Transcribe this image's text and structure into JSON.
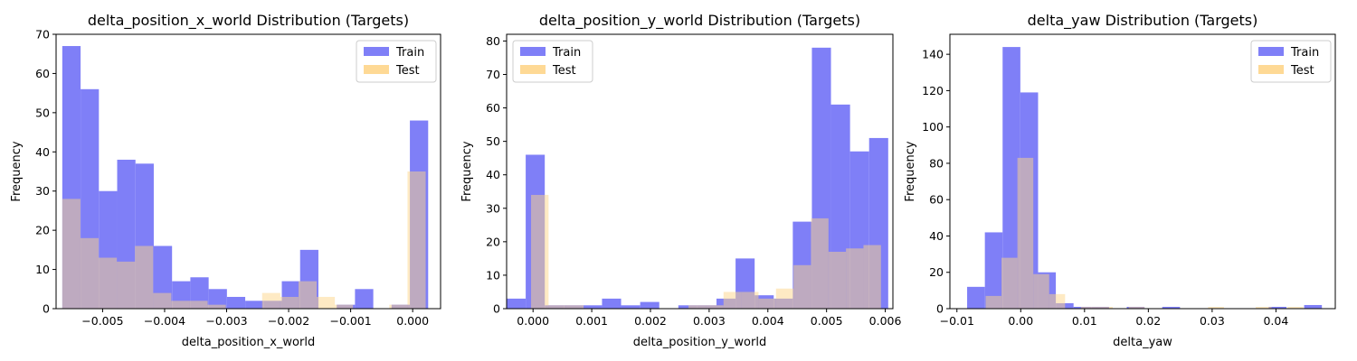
{
  "chart_data": [
    {
      "type": "bar",
      "title": "delta_position_x_world Distribution (Targets)",
      "xlabel": "delta_position_x_world",
      "ylabel": "Frequency",
      "xlim": [
        -0.00575,
        0.00045
      ],
      "ylim": [
        0,
        70
      ],
      "xticks": [
        -0.005,
        -0.004,
        -0.003,
        -0.002,
        -0.001,
        0.0
      ],
      "xtick_labels": [
        "−0.005",
        "−0.004",
        "−0.003",
        "−0.002",
        "−0.001",
        "0.000"
      ],
      "yticks": [
        0,
        10,
        20,
        30,
        40,
        50,
        60,
        70
      ],
      "legend": "top-right",
      "series": [
        {
          "name": "Train",
          "color": "#7f7ff7",
          "bin_start": -0.00565,
          "bin_width": 0.000295,
          "values": [
            67,
            56,
            30,
            38,
            37,
            16,
            7,
            8,
            5,
            3,
            2,
            2,
            7,
            15,
            0,
            1,
            5,
            0,
            1,
            48
          ]
        },
        {
          "name": "Test",
          "color": "#fed58a",
          "bin_start": -0.00565,
          "bin_width": 0.000293,
          "values": [
            28,
            18,
            13,
            12,
            16,
            4,
            2,
            2,
            1,
            0,
            0,
            4,
            3,
            7,
            3,
            1,
            0,
            0,
            1,
            35
          ]
        }
      ]
    },
    {
      "type": "bar",
      "title": "delta_position_y_world Distribution (Targets)",
      "xlabel": "delta_position_y_world",
      "ylabel": "Frequency",
      "xlim": [
        -0.00045,
        0.00613
      ],
      "ylim": [
        0,
        82
      ],
      "xticks": [
        0.0,
        0.001,
        0.002,
        0.003,
        0.004,
        0.005,
        0.006
      ],
      "xtick_labels": [
        "0.000",
        "0.001",
        "0.002",
        "0.003",
        "0.004",
        "0.005",
        "0.006"
      ],
      "yticks": [
        0,
        10,
        20,
        30,
        40,
        50,
        60,
        70,
        80
      ],
      "legend": "top-left",
      "series": [
        {
          "name": "Train",
          "color": "#7f7ff7",
          "bin_start": -0.00045,
          "bin_width": 0.000325,
          "values": [
            3,
            46,
            1,
            1,
            1,
            3,
            1,
            2,
            0,
            1,
            1,
            3,
            15,
            4,
            3,
            26,
            78,
            61,
            47,
            51
          ]
        },
        {
          "name": "Test",
          "color": "#fed58a",
          "bin_start": -3.33e-05,
          "bin_width": 0.000298,
          "values": [
            34,
            1,
            1,
            0,
            0,
            0,
            0,
            0,
            0,
            1,
            1,
            5,
            5,
            3,
            6,
            13,
            27,
            17,
            18,
            19
          ]
        }
      ]
    },
    {
      "type": "bar",
      "title": "delta_yaw Distribution (Targets)",
      "xlabel": "delta_yaw",
      "ylabel": "Frequency",
      "xlim": [
        -0.0111,
        0.0493
      ],
      "ylim": [
        0,
        151
      ],
      "xticks": [
        -0.01,
        0.0,
        0.01,
        0.02,
        0.03,
        0.04
      ],
      "xtick_labels": [
        "−0.01",
        "0.00",
        "0.01",
        "0.02",
        "0.03",
        "0.04"
      ],
      "yticks": [
        0,
        20,
        40,
        60,
        80,
        100,
        120,
        140
      ],
      "legend": "top-right",
      "series": [
        {
          "name": "Train",
          "color": "#7f7ff7",
          "bin_start": -0.0084,
          "bin_width": 0.00278,
          "values": [
            12,
            42,
            144,
            119,
            20,
            3,
            1,
            1,
            0,
            1,
            0,
            1,
            0,
            0,
            0,
            0,
            0,
            1,
            0,
            2
          ]
        },
        {
          "name": "Test",
          "color": "#fed58a",
          "bin_start": -0.0055,
          "bin_width": 0.00249,
          "values": [
            7,
            28,
            83,
            19,
            8,
            0,
            1,
            1,
            0,
            1,
            0,
            0,
            0,
            0,
            1,
            0,
            0,
            1,
            0,
            1
          ]
        }
      ]
    }
  ]
}
